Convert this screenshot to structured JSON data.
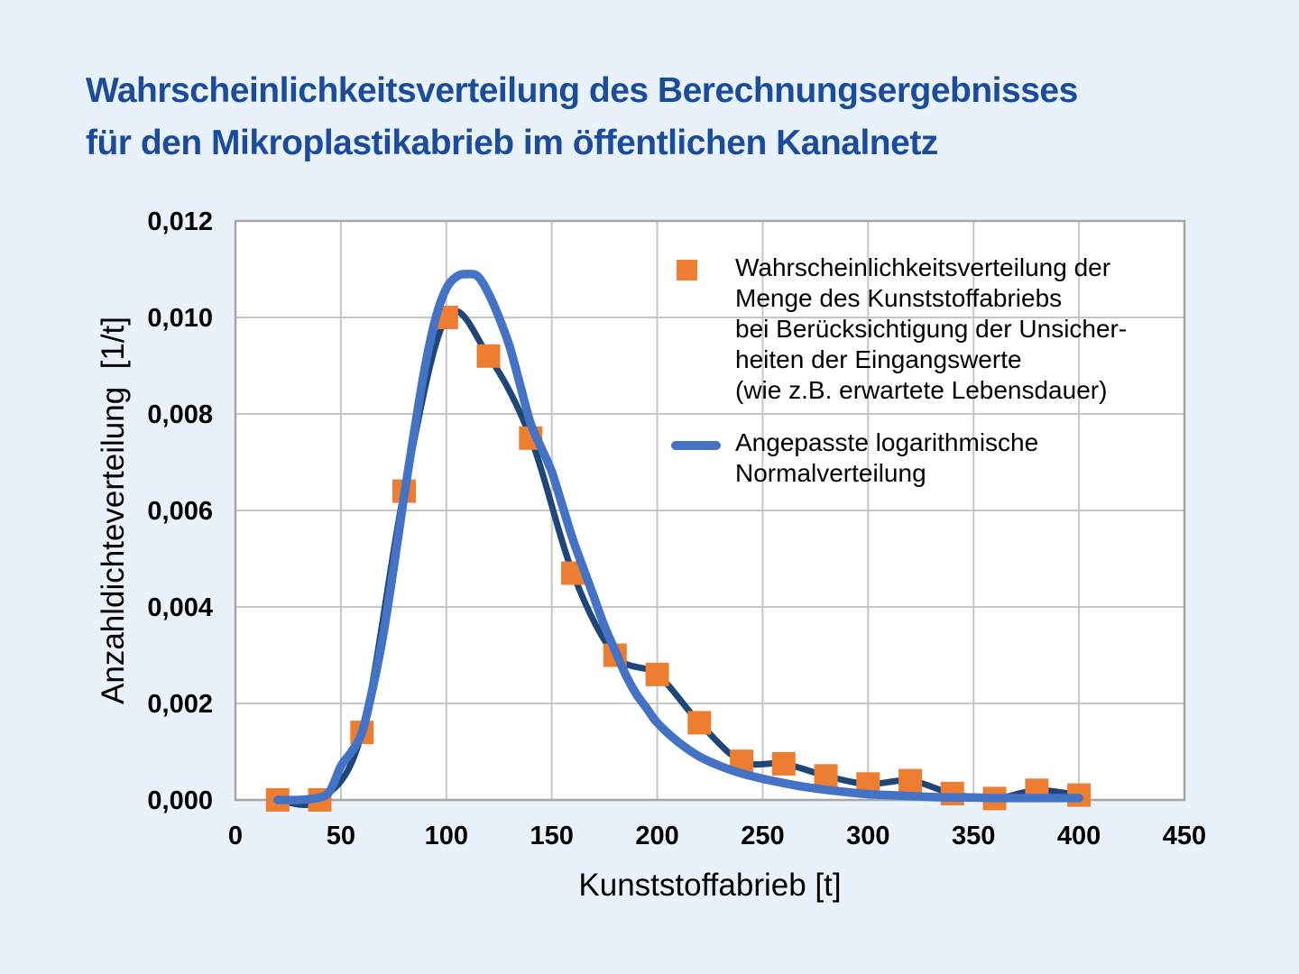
{
  "header": {
    "title_lines": [
      "Wahrscheinlichkeitsverteilung des Berechnungsergebnisses",
      "für den Mikroplastikabrieb im öffentlichen Kanalnetz"
    ]
  },
  "colors": {
    "background": "#E9F2FB",
    "title": "#1B4C9B",
    "plot_bg": "#FFFFFF",
    "gridline": "#C6C6C6",
    "axis_line": "#A6A6A6",
    "text": "#000000",
    "scatter": "#ED7D31",
    "data_line": "#1F4679",
    "fit_line": "#4472C4"
  },
  "legend": {
    "scatter_label_lines": [
      "Wahrscheinlichkeitsverteilung der",
      "Menge des Kunststoffabriebs",
      "bei Berücksichtigung der Unsicher-",
      "heiten der Eingangswerte",
      "(wie z.B. erwartete Lebensdauer)"
    ],
    "fit_label_lines": [
      "Angepasste logarithmische",
      "Normalverteilung"
    ]
  },
  "chart_data": {
    "type": "scatter",
    "title": "Wahrscheinlichkeitsverteilung des Berechnungsergebnisses für den Mikroplastikabrieb im öffentlichen Kanalnetz",
    "xlabel": "Kunststoffabrieb [t]",
    "ylabel": "Anzahldichteverteilung  [1/t]",
    "xlim": [
      0,
      450
    ],
    "ylim": [
      0,
      0.012
    ],
    "grid": true,
    "legend_position": "top-right-inside",
    "x_tick_values": [
      0,
      50,
      100,
      150,
      200,
      250,
      300,
      350,
      400,
      450
    ],
    "x_tick_labels": [
      "0",
      "50",
      "100",
      "150",
      "200",
      "250",
      "300",
      "350",
      "400",
      "450"
    ],
    "y_tick_values": [
      0,
      0.002,
      0.004,
      0.006,
      0.008,
      0.01,
      0.012
    ],
    "y_tick_labels": [
      "0,000",
      "0,002",
      "0,004",
      "0,006",
      "0,008",
      "0,010",
      "0,012"
    ],
    "series": [
      {
        "name": "Wahrscheinlichkeitsverteilung der Menge des Kunststoffabriebs bei Berücksichtigung der Unsicherheiten der Eingangswerte (wie z.B. erwartete Lebensdauer)",
        "type": "scatter-with-smoothed-line",
        "marker": "square",
        "marker_color": "#ED7D31",
        "line_color": "#1F4679",
        "points": [
          [
            20,
            0.0
          ],
          [
            40,
            0.0
          ],
          [
            60,
            0.0014
          ],
          [
            80,
            0.0064
          ],
          [
            100,
            0.01
          ],
          [
            120,
            0.0092
          ],
          [
            140,
            0.0075
          ],
          [
            160,
            0.0047
          ],
          [
            180,
            0.003
          ],
          [
            200,
            0.0026
          ],
          [
            220,
            0.0016
          ],
          [
            240,
            0.0008
          ],
          [
            260,
            0.00075
          ],
          [
            280,
            0.0005
          ],
          [
            300,
            0.00033
          ],
          [
            320,
            0.0004
          ],
          [
            340,
            0.00013
          ],
          [
            360,
            3e-05
          ],
          [
            380,
            0.0002
          ],
          [
            400,
            0.0001
          ]
        ]
      },
      {
        "name": "Angepasste logarithmische Normalverteilung",
        "type": "smooth-curve",
        "line_color": "#4472C4",
        "points": [
          [
            20,
            0
          ],
          [
            30,
            0
          ],
          [
            40,
            5e-05
          ],
          [
            45,
            0.0002
          ],
          [
            50,
            0.0007
          ],
          [
            55,
            0.001
          ],
          [
            60,
            0.0014
          ],
          [
            65,
            0.0023
          ],
          [
            70,
            0.0034
          ],
          [
            75,
            0.0048
          ],
          [
            80,
            0.0063
          ],
          [
            85,
            0.0077
          ],
          [
            90,
            0.009
          ],
          [
            95,
            0.01
          ],
          [
            100,
            0.0106
          ],
          [
            105,
            0.01085
          ],
          [
            110,
            0.0109
          ],
          [
            115,
            0.01085
          ],
          [
            120,
            0.0105
          ],
          [
            125,
            0.01
          ],
          [
            130,
            0.0094
          ],
          [
            135,
            0.0086
          ],
          [
            140,
            0.0078
          ],
          [
            145,
            0.0073
          ],
          [
            150,
            0.0068
          ],
          [
            155,
            0.0061
          ],
          [
            160,
            0.0054
          ],
          [
            165,
            0.0048
          ],
          [
            170,
            0.0042
          ],
          [
            175,
            0.0036
          ],
          [
            180,
            0.0031
          ],
          [
            185,
            0.0026
          ],
          [
            190,
            0.0022
          ],
          [
            195,
            0.0019
          ],
          [
            200,
            0.0016
          ],
          [
            210,
            0.0012
          ],
          [
            220,
            0.0009
          ],
          [
            230,
            0.0007
          ],
          [
            240,
            0.00055
          ],
          [
            250,
            0.00044
          ],
          [
            260,
            0.00035
          ],
          [
            270,
            0.00027
          ],
          [
            280,
            0.00021
          ],
          [
            290,
            0.00016
          ],
          [
            300,
            0.00012
          ],
          [
            310,
            0.0001
          ],
          [
            320,
            8e-05
          ],
          [
            330,
            6e-05
          ],
          [
            340,
            5e-05
          ],
          [
            350,
            5e-05
          ],
          [
            360,
            4e-05
          ],
          [
            370,
            4e-05
          ],
          [
            380,
            4e-05
          ],
          [
            390,
            4e-05
          ],
          [
            400,
            4e-05
          ]
        ]
      }
    ]
  }
}
